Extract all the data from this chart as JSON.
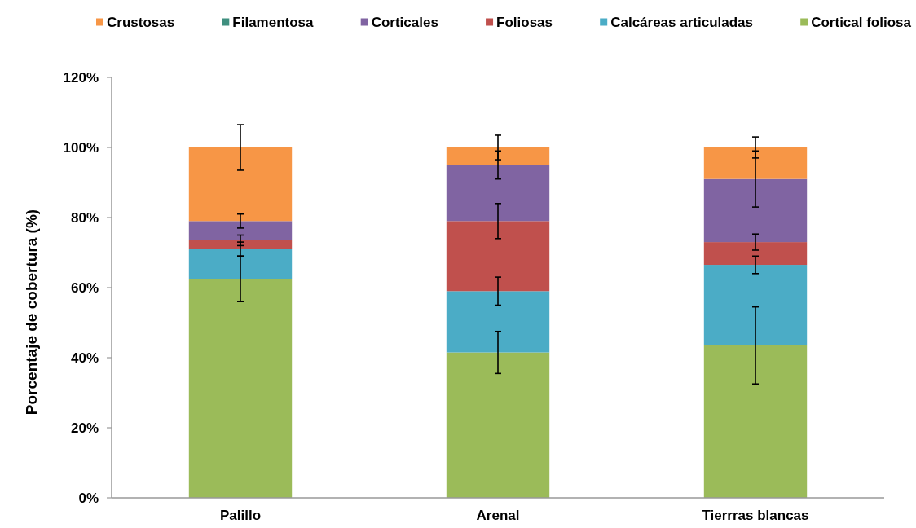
{
  "chart_data": {
    "type": "bar",
    "stacked": true,
    "legend": "top",
    "ylabel": "Porcentaje de cobertura (%)",
    "categories": [
      "Palillo",
      "Arenal",
      "Tierrras blancas"
    ],
    "ylim": [
      0,
      120
    ],
    "yticks": [
      {
        "value": 0,
        "label": "0%"
      },
      {
        "value": 20,
        "label": "20%"
      },
      {
        "value": 40,
        "label": "40%"
      },
      {
        "value": 60,
        "label": "60%"
      },
      {
        "value": 80,
        "label": "80%"
      },
      {
        "value": 100,
        "label": "100%"
      },
      {
        "value": 120,
        "label": "120%"
      }
    ],
    "series": [
      {
        "name": "Cortical foliosa",
        "color": "#9bbb59",
        "values": [
          62.5,
          41.5,
          43.5
        ],
        "errors": [
          6.5,
          6,
          11
        ]
      },
      {
        "name": "Calcáreas articuladas",
        "color": "#4bacc6",
        "values": [
          8.5,
          17.5,
          23
        ],
        "errors": [
          2,
          4,
          2.5
        ]
      },
      {
        "name": "Foliosas",
        "color": "#c0504d",
        "values": [
          2.5,
          20,
          6.5
        ],
        "errors": [
          1.5,
          5,
          2.3
        ]
      },
      {
        "name": "Corticales",
        "color": "#8064a2",
        "values": [
          5.5,
          16,
          18
        ],
        "errors": [
          2,
          4,
          8
        ]
      },
      {
        "name": "Filamentosa",
        "color": "#3f8f7f",
        "values": [
          0,
          0,
          0
        ]
      },
      {
        "name": "Crustosas",
        "color": "#f79646",
        "values": [
          21,
          5,
          9
        ],
        "errors": [
          6.5,
          3.5,
          3
        ]
      }
    ]
  }
}
